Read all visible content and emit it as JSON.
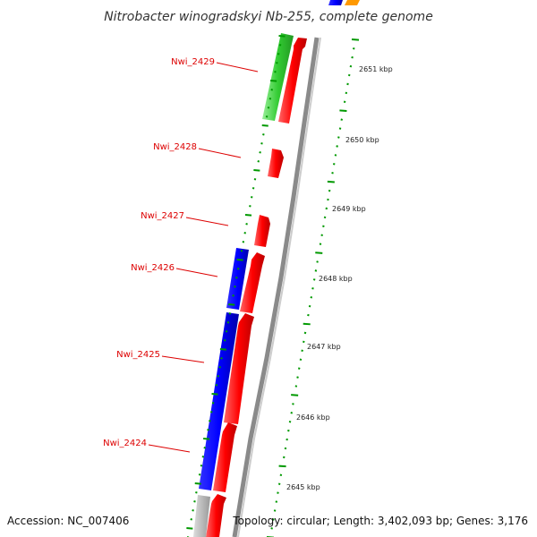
{
  "title": "Nitrobacter winogradskyi Nb-255, complete genome",
  "accession": "Accession: NC_007406",
  "summary": "Topology: circular; Length: 3,402,093 bp; Genes: 3,176",
  "colors": {
    "forward_cds": "#ff0000",
    "reverse_cds": "#0000ff",
    "rna": "#33cc33",
    "other": "#ff9900",
    "backbone": "#999999",
    "ticks": "#009900",
    "labels": "#dd0000"
  },
  "genes": [
    {
      "name": "Nwi_2429"
    },
    {
      "name": "Nwi_2428"
    },
    {
      "name": "Nwi_2427"
    },
    {
      "name": "Nwi_2426"
    },
    {
      "name": "Nwi_2425"
    },
    {
      "name": "Nwi_2424"
    }
  ],
  "kbp_ticks": [
    {
      "label": "2651 kbp"
    },
    {
      "label": "2650 kbp"
    },
    {
      "label": "2649 kbp"
    },
    {
      "label": "2648 kbp"
    },
    {
      "label": "2647 kbp"
    },
    {
      "label": "2646 kbp"
    },
    {
      "label": "2645 kbp"
    }
  ]
}
